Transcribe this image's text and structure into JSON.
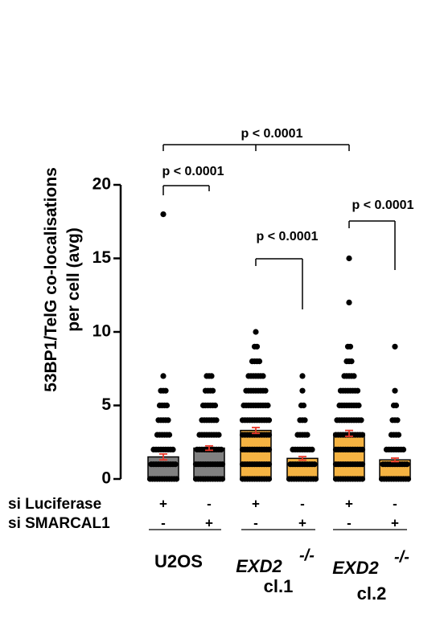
{
  "chart_data": {
    "type": "bar",
    "y_label_lines": [
      "53BP1/TelG co-localisations",
      "per cell (avg)"
    ],
    "values": [
      1.5,
      2.1,
      3.3,
      1.4,
      3.1,
      1.3
    ],
    "errors": [
      0.2,
      0.15,
      0.2,
      0.12,
      0.2,
      0.12
    ],
    "colors": [
      "#808080",
      "#808080",
      "#f5b342",
      "#f5b342",
      "#f5b342",
      "#f5b342"
    ],
    "error_color": "#e8382a",
    "ylim": [
      0,
      20
    ],
    "yticks": [
      0,
      5,
      10,
      15,
      20
    ],
    "dots": [
      {
        "levels": [
          0,
          1,
          2,
          3,
          4,
          5,
          6,
          7,
          18
        ],
        "counts": [
          12,
          11,
          9,
          6,
          5,
          4,
          3,
          1,
          1
        ]
      },
      {
        "levels": [
          0,
          1,
          2,
          3,
          4,
          5,
          6,
          7
        ],
        "counts": [
          12,
          12,
          11,
          9,
          7,
          6,
          4,
          3
        ]
      },
      {
        "levels": [
          0,
          1,
          2,
          3,
          4,
          5,
          6,
          7,
          8,
          9,
          10
        ],
        "counts": [
          12,
          12,
          12,
          12,
          12,
          11,
          9,
          7,
          4,
          2,
          1
        ]
      },
      {
        "levels": [
          0,
          1,
          2,
          3,
          4,
          5,
          6,
          7
        ],
        "counts": [
          12,
          11,
          9,
          5,
          3,
          2,
          1,
          1
        ]
      },
      {
        "levels": [
          0,
          1,
          2,
          3,
          4,
          5,
          6,
          7,
          8,
          9,
          12,
          15
        ],
        "counts": [
          12,
          12,
          12,
          12,
          11,
          9,
          8,
          5,
          3,
          2,
          1,
          1
        ]
      },
      {
        "levels": [
          0,
          1,
          2,
          3,
          4,
          5,
          6,
          9
        ],
        "counts": [
          12,
          11,
          8,
          4,
          3,
          2,
          1,
          1
        ]
      }
    ],
    "rows": [
      {
        "label": "si Luciferase",
        "signs": [
          "+",
          "-",
          "+",
          "-",
          "+",
          "-"
        ]
      },
      {
        "label": "si SMARCAL1",
        "signs": [
          "-",
          "+",
          "-",
          "+",
          "-",
          "+"
        ]
      }
    ],
    "groups": [
      {
        "name": "U2OS"
      },
      {
        "name": "EXD2",
        "sup": "-/-",
        "clone": "cl.1"
      },
      {
        "name": "EXD2",
        "sup": "-/-",
        "clone": "cl.2"
      }
    ],
    "brackets": [
      {
        "label": "p < 0.0001",
        "bars": [
          0,
          2,
          4
        ]
      },
      {
        "label": "p < 0.0001",
        "bars": [
          0,
          1
        ]
      },
      {
        "label": "p < 0.0001",
        "bars": [
          2,
          3
        ]
      },
      {
        "label": "p < 0.0001",
        "bars": [
          4,
          5
        ]
      }
    ]
  }
}
